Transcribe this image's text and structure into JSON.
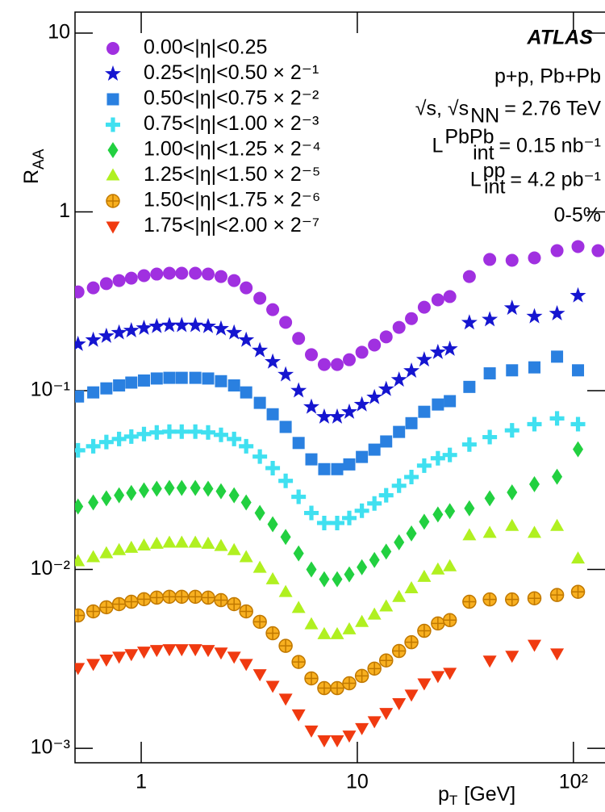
{
  "chart_data": {
    "type": "scatter",
    "xlabel": {
      "text": "p",
      "sub": "T",
      "rest": "[GeV]"
    },
    "ylabel": {
      "text": "R",
      "sub": "AA"
    },
    "xscale": "log",
    "yscale": "log",
    "xlim": [
      0.494,
      140
    ],
    "ylim": [
      0.00083,
      13.1
    ],
    "xticks": [
      1,
      10,
      {
        "value": 100,
        "label": "10²"
      }
    ],
    "yticks": [
      {
        "value": 0.001,
        "label": "10⁻³"
      },
      {
        "value": 0.01,
        "label": "10⁻²"
      },
      {
        "value": 0.1,
        "label": "10⁻¹"
      },
      1,
      10
    ],
    "legend": "upper left",
    "annotations": [
      {
        "text": "ATLAS"
      },
      {
        "text": "p+p, Pb+Pb"
      },
      {
        "text": "√s, √s",
        "sub": "NN",
        "rest": "= 2.76 TeV"
      },
      {
        "text": "L",
        "sup": "PbPb",
        "sub": "int",
        "rest": "= 0.15 nb⁻¹"
      },
      {
        "text": "L",
        "sup": "pp",
        "sub": "int",
        "rest": "= 4.2 pb⁻¹"
      },
      {
        "text": "0-5%"
      }
    ],
    "x": [
      0.51,
      0.6,
      0.69,
      0.79,
      0.9,
      1.03,
      1.18,
      1.35,
      1.54,
      1.78,
      2.04,
      2.34,
      2.69,
      3.06,
      3.54,
      4.06,
      4.66,
      5.35,
      6.13,
      7.03,
      8.07,
      9.18,
      10.5,
      12.0,
      13.6,
      15.6,
      17.8,
      20.4,
      23.6,
      26.8,
      33,
      41,
      52,
      66,
      84,
      105,
      130
    ],
    "series": [
      {
        "name": "0.00<|η|<0.25",
        "color": "#a030e0",
        "marker": "circle",
        "values": [
          0.357,
          0.376,
          0.397,
          0.413,
          0.426,
          0.44,
          0.449,
          0.454,
          0.454,
          0.454,
          0.449,
          0.435,
          0.413,
          0.376,
          0.329,
          0.284,
          0.241,
          0.196,
          0.159,
          0.14,
          0.14,
          0.149,
          0.164,
          0.18,
          0.2,
          0.226,
          0.253,
          0.293,
          0.322,
          0.336,
          0.435,
          0.542,
          0.536,
          0.553,
          0.607,
          0.64,
          0.607
        ]
      },
      {
        "name": "0.25<|η|<0.50 × 2⁻¹",
        "color": "#1515d0",
        "marker": "star",
        "values": [
          0.182,
          0.192,
          0.202,
          0.211,
          0.217,
          0.224,
          0.229,
          0.232,
          0.232,
          0.232,
          0.229,
          0.222,
          0.211,
          0.192,
          0.168,
          0.145,
          0.123,
          0.1,
          0.0811,
          0.0714,
          0.0714,
          0.076,
          0.0836,
          0.0918,
          0.102,
          0.115,
          0.129,
          0.149,
          0.164,
          0.171,
          0.24,
          0.25,
          0.29,
          0.26,
          0.27,
          0.34,
          null
        ]
      },
      {
        "name": "0.50<|η|<0.75 × 2⁻²",
        "color": "#2a80e0",
        "marker": "square",
        "values": [
          0.0928,
          0.0978,
          0.103,
          0.107,
          0.111,
          0.114,
          0.117,
          0.118,
          0.118,
          0.118,
          0.117,
          0.113,
          0.107,
          0.0978,
          0.0855,
          0.0738,
          0.0627,
          0.051,
          0.0413,
          0.0364,
          0.0364,
          0.0387,
          0.0426,
          0.0468,
          0.052,
          0.0588,
          0.0658,
          0.0762,
          0.0837,
          0.0874,
          0.105,
          0.125,
          0.13,
          0.135,
          0.155,
          0.13,
          null
        ]
      },
      {
        "name": "0.75<|η|<1.00 × 2⁻³",
        "color": "#40e0f0",
        "marker": "plus",
        "values": [
          0.0464,
          0.0489,
          0.0516,
          0.0537,
          0.0554,
          0.0572,
          0.0584,
          0.059,
          0.059,
          0.059,
          0.0584,
          0.0566,
          0.0537,
          0.0489,
          0.0428,
          0.0369,
          0.0313,
          0.0255,
          0.0207,
          0.0182,
          0.0182,
          0.0194,
          0.0213,
          0.0234,
          0.026,
          0.0294,
          0.0329,
          0.0381,
          0.0419,
          0.0437,
          0.05,
          0.055,
          0.06,
          0.065,
          0.07,
          0.065,
          null
        ]
      },
      {
        "name": "1.00<|η|<1.25 × 2⁻⁴",
        "color": "#22d040",
        "marker": "diamond",
        "values": [
          0.0225,
          0.0237,
          0.025,
          0.026,
          0.0268,
          0.0277,
          0.0283,
          0.0286,
          0.0286,
          0.0286,
          0.0283,
          0.0274,
          0.026,
          0.0237,
          0.0207,
          0.0179,
          0.0152,
          0.0123,
          0.01,
          0.00882,
          0.00882,
          0.00939,
          0.0103,
          0.0113,
          0.0126,
          0.0142,
          0.0159,
          0.0185,
          0.0203,
          0.0212,
          0.022,
          0.025,
          0.027,
          0.03,
          0.033,
          0.047,
          null
        ]
      },
      {
        "name": "1.25<|η|<1.50 × 2⁻⁵",
        "color": "#b0f020",
        "marker": "triangle-up",
        "values": [
          0.0111,
          0.0117,
          0.0123,
          0.0128,
          0.0132,
          0.0136,
          0.0139,
          0.0141,
          0.0141,
          0.0141,
          0.0139,
          0.0135,
          0.0128,
          0.0117,
          0.0102,
          0.0088,
          0.00747,
          0.00608,
          0.00493,
          0.00434,
          0.00434,
          0.00462,
          0.00508,
          0.00558,
          0.0062,
          0.00701,
          0.00784,
          0.00908,
          0.00998,
          0.0104,
          0.0155,
          0.016,
          0.0175,
          0.016,
          0.0175,
          0.0115,
          null
        ]
      },
      {
        "name": "1.50<|η|<1.75 × 2⁻⁶",
        "color": "#f8b020",
        "marker": "circle-plus",
        "values": [
          0.00553,
          0.00583,
          0.00615,
          0.0064,
          0.0066,
          0.00682,
          0.00696,
          0.00704,
          0.00704,
          0.00704,
          0.00696,
          0.00674,
          0.0064,
          0.00583,
          0.0051,
          0.0044,
          0.00374,
          0.00304,
          0.00246,
          0.00217,
          0.00217,
          0.00231,
          0.00254,
          0.00279,
          0.0031,
          0.0035,
          0.00392,
          0.00454,
          0.00499,
          0.00521,
          0.0066,
          0.0068,
          0.0068,
          0.0069,
          0.0072,
          0.0075,
          null
        ]
      },
      {
        "name": "1.75<|η|<2.00 × 2⁻⁷",
        "color": "#f03a10",
        "marker": "triangle-down",
        "values": [
          0.00282,
          0.00297,
          0.00314,
          0.00326,
          0.00337,
          0.00348,
          0.00355,
          0.00359,
          0.00359,
          0.00359,
          0.00355,
          0.00344,
          0.00326,
          0.00297,
          0.0026,
          0.00224,
          0.0019,
          0.00155,
          0.00126,
          0.00111,
          0.00111,
          0.00118,
          0.0013,
          0.00142,
          0.00158,
          0.00179,
          0.002,
          0.00231,
          0.00254,
          0.00265,
          null,
          0.0031,
          0.0033,
          0.0038,
          0.0034,
          null,
          null
        ]
      }
    ]
  }
}
